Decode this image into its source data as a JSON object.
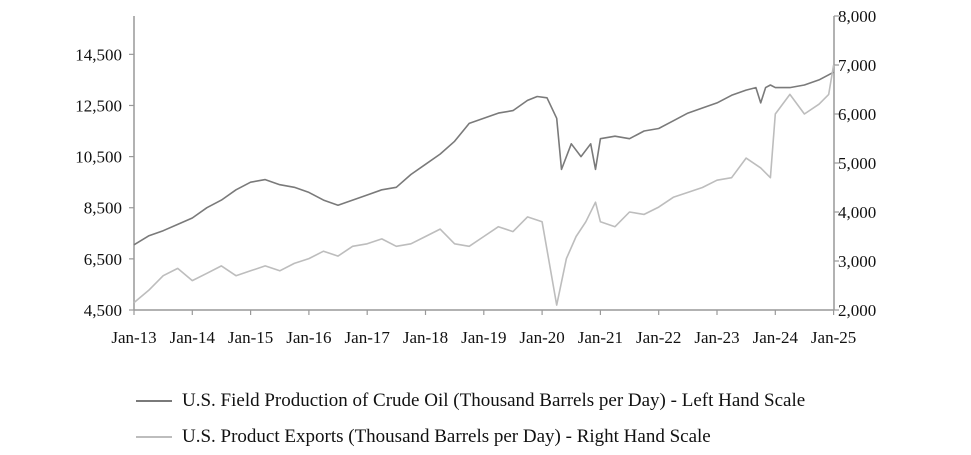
{
  "chart_data": {
    "type": "line",
    "title": "",
    "xlabel": "",
    "ylabel": "",
    "x_tick_labels": [
      "Jan-13",
      "Jan-14",
      "Jan-15",
      "Jan-16",
      "Jan-17",
      "Jan-18",
      "Jan-19",
      "Jan-20",
      "Jan-21",
      "Jan-22",
      "Jan-23",
      "Jan-24",
      "Jan-25"
    ],
    "y_left": {
      "ylim": [
        4500,
        16000
      ],
      "ticks": [
        "4,500",
        "6,500",
        "8,500",
        "10,500",
        "12,500",
        "14,500"
      ]
    },
    "y_right": {
      "ylim": [
        2000,
        8000
      ],
      "ticks": [
        "2,000",
        "3,000",
        "4,000",
        "5,000",
        "6,000",
        "7,000",
        "8,000"
      ]
    },
    "grid": false,
    "legend_position": "bottom",
    "series": [
      {
        "name": "U.S. Field Production of Crude Oil (Thousand Barrels per Day) - Left Hand Scale",
        "axis": "left",
        "color": "#7a7a7a",
        "points": [
          [
            "Jan-13",
            7050
          ],
          [
            "Apr-13",
            7400
          ],
          [
            "Jul-13",
            7600
          ],
          [
            "Oct-13",
            7850
          ],
          [
            "Jan-14",
            8100
          ],
          [
            "Apr-14",
            8500
          ],
          [
            "Jul-14",
            8800
          ],
          [
            "Oct-14",
            9200
          ],
          [
            "Jan-15",
            9500
          ],
          [
            "Apr-15",
            9600
          ],
          [
            "Jul-15",
            9400
          ],
          [
            "Oct-15",
            9300
          ],
          [
            "Jan-16",
            9100
          ],
          [
            "Apr-16",
            8800
          ],
          [
            "Jul-16",
            8600
          ],
          [
            "Oct-16",
            8800
          ],
          [
            "Jan-17",
            9000
          ],
          [
            "Apr-17",
            9200
          ],
          [
            "Jul-17",
            9300
          ],
          [
            "Oct-17",
            9800
          ],
          [
            "Jan-18",
            10200
          ],
          [
            "Apr-18",
            10600
          ],
          [
            "Jul-18",
            11100
          ],
          [
            "Oct-18",
            11800
          ],
          [
            "Jan-19",
            12000
          ],
          [
            "Apr-19",
            12200
          ],
          [
            "Jul-19",
            12300
          ],
          [
            "Oct-19",
            12700
          ],
          [
            "Dec-19",
            12850
          ],
          [
            "Feb-20",
            12800
          ],
          [
            "Apr-20",
            12000
          ],
          [
            "May-20",
            10000
          ],
          [
            "Jul-20",
            11000
          ],
          [
            "Sep-20",
            10500
          ],
          [
            "Nov-20",
            11000
          ],
          [
            "Dec-20",
            10000
          ],
          [
            "Jan-21",
            11200
          ],
          [
            "Apr-21",
            11300
          ],
          [
            "Jul-21",
            11200
          ],
          [
            "Oct-21",
            11500
          ],
          [
            "Jan-22",
            11600
          ],
          [
            "Apr-22",
            11900
          ],
          [
            "Jul-22",
            12200
          ],
          [
            "Oct-22",
            12400
          ],
          [
            "Jan-23",
            12600
          ],
          [
            "Apr-23",
            12900
          ],
          [
            "Jul-23",
            13100
          ],
          [
            "Sep-23",
            13200
          ],
          [
            "Oct-23",
            12600
          ],
          [
            "Nov-23",
            13200
          ],
          [
            "Dec-23",
            13300
          ],
          [
            "Jan-24",
            13200
          ],
          [
            "Apr-24",
            13200
          ],
          [
            "Jul-24",
            13300
          ],
          [
            "Oct-24",
            13500
          ],
          [
            "Dec-24",
            13700
          ],
          [
            "Jan-25",
            13800
          ]
        ]
      },
      {
        "name": "U.S. Product Exports (Thousand Barrels per Day) - Right Hand Scale",
        "axis": "right",
        "color": "#bdbdbd",
        "points": [
          [
            "Jan-13",
            2150
          ],
          [
            "Apr-13",
            2400
          ],
          [
            "Jul-13",
            2700
          ],
          [
            "Oct-13",
            2850
          ],
          [
            "Jan-14",
            2600
          ],
          [
            "Apr-14",
            2750
          ],
          [
            "Jul-14",
            2900
          ],
          [
            "Oct-14",
            2700
          ],
          [
            "Jan-15",
            2800
          ],
          [
            "Apr-15",
            2900
          ],
          [
            "Jul-15",
            2800
          ],
          [
            "Oct-15",
            2950
          ],
          [
            "Jan-16",
            3050
          ],
          [
            "Apr-16",
            3200
          ],
          [
            "Jul-16",
            3100
          ],
          [
            "Oct-16",
            3300
          ],
          [
            "Jan-17",
            3350
          ],
          [
            "Apr-17",
            3450
          ],
          [
            "Jul-17",
            3300
          ],
          [
            "Oct-17",
            3350
          ],
          [
            "Jan-18",
            3500
          ],
          [
            "Apr-18",
            3650
          ],
          [
            "Jul-18",
            3350
          ],
          [
            "Oct-18",
            3300
          ],
          [
            "Jan-19",
            3500
          ],
          [
            "Apr-19",
            3700
          ],
          [
            "Jul-19",
            3600
          ],
          [
            "Oct-19",
            3900
          ],
          [
            "Jan-20",
            3800
          ],
          [
            "Apr-20",
            2100
          ],
          [
            "Jun-20",
            3050
          ],
          [
            "Aug-20",
            3500
          ],
          [
            "Oct-20",
            3800
          ],
          [
            "Dec-20",
            4200
          ],
          [
            "Jan-21",
            3800
          ],
          [
            "Apr-21",
            3700
          ],
          [
            "Jul-21",
            4000
          ],
          [
            "Oct-21",
            3950
          ],
          [
            "Jan-22",
            4100
          ],
          [
            "Apr-22",
            4300
          ],
          [
            "Jul-22",
            4400
          ],
          [
            "Oct-22",
            4500
          ],
          [
            "Jan-23",
            4650
          ],
          [
            "Apr-23",
            4700
          ],
          [
            "Jul-23",
            5100
          ],
          [
            "Oct-23",
            4900
          ],
          [
            "Dec-23",
            4700
          ],
          [
            "Jan-24",
            6000
          ],
          [
            "Apr-24",
            6400
          ],
          [
            "Jul-24",
            6000
          ],
          [
            "Oct-24",
            6200
          ],
          [
            "Dec-24",
            6400
          ],
          [
            "Jan-25",
            7000
          ]
        ]
      }
    ]
  }
}
